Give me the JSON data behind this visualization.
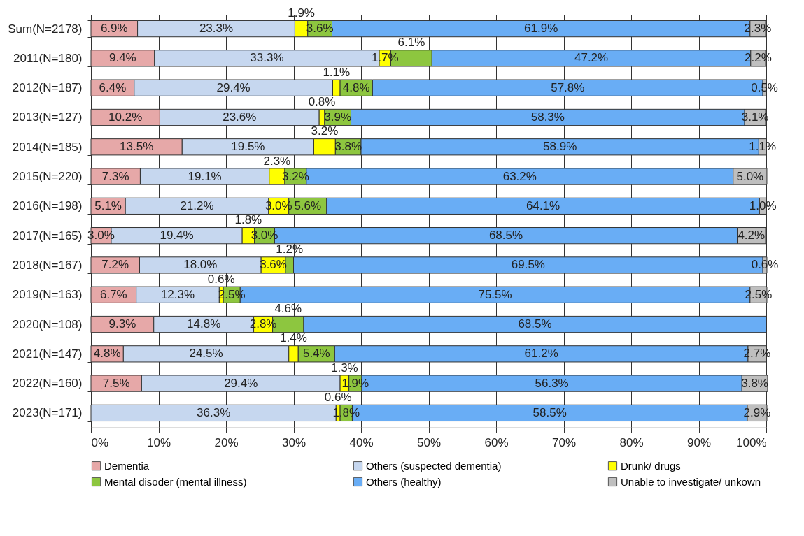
{
  "chart_data": {
    "type": "bar",
    "orientation": "horizontal",
    "stacked": true,
    "categories": [
      "Sum(N=2178)",
      "2011(N=180)",
      "2012(N=187)",
      "2013(N=127)",
      "2014(N=185)",
      "2015(N=220)",
      "2016(N=198)",
      "2017(N=165)",
      "2018(N=167)",
      "2019(N=163)",
      "2020(N=108)",
      "2021(N=147)",
      "2022(N=160)",
      "2023(N=171)"
    ],
    "series": [
      {
        "name": "Dementia",
        "color": "#e6a8a8",
        "values": [
          6.9,
          9.4,
          6.4,
          10.2,
          13.5,
          7.3,
          5.1,
          3.0,
          7.2,
          6.7,
          9.3,
          4.8,
          7.5,
          null
        ],
        "value_labels": [
          "6.9%",
          "9.4%",
          "6.4%",
          "10.2%",
          "13.5%",
          "7.3%",
          "5.1%",
          "3.0%",
          "7.2%",
          "6.7%",
          "9.3%",
          "4.8%",
          "7.5%",
          null
        ]
      },
      {
        "name": "Others (suspected dementia)",
        "color": "#c6d7ef",
        "values": [
          23.3,
          33.3,
          29.4,
          23.6,
          19.5,
          19.1,
          21.2,
          19.4,
          18.0,
          12.3,
          14.8,
          24.5,
          29.4,
          36.3
        ],
        "value_labels": [
          "23.3%",
          "33.3%",
          "29.4%",
          "23.6%",
          "19.5%",
          "19.1%",
          "21.2%",
          "19.4%",
          "18.0%",
          "12.3%",
          "14.8%",
          "24.5%",
          "29.4%",
          "36.3%"
        ]
      },
      {
        "name": "Drunk/ drugs",
        "color": "#ffff00",
        "values": [
          1.9,
          1.7,
          1.1,
          0.8,
          3.2,
          2.3,
          3.0,
          1.8,
          3.6,
          0.6,
          2.8,
          1.4,
          1.3,
          0.6
        ],
        "value_labels": [
          "1.9%",
          "1.7%",
          "1.1%",
          "0.8%",
          "3.2%",
          "2.3%",
          "3.0%",
          "1.8%",
          "3.6%",
          "0.6%",
          "2.8%",
          "1.4%",
          "1.3%",
          "0.6%"
        ]
      },
      {
        "name": "Mental disoder (mental illness)",
        "color": "#8dc63f",
        "values": [
          3.6,
          6.1,
          4.8,
          3.9,
          3.8,
          3.2,
          5.6,
          3.0,
          1.2,
          2.5,
          4.6,
          5.4,
          1.9,
          1.8
        ],
        "value_labels": [
          "3.6%",
          "6.1%",
          "4.8%",
          "3.9%",
          "3.8%",
          "3.2%",
          "5.6%",
          "3.0%",
          "1.2%",
          "2.5%",
          "4.6%",
          "5.4%",
          "1.9%",
          "1.8%"
        ]
      },
      {
        "name": "Others (healthy)",
        "color": "#69adf5",
        "values": [
          61.9,
          47.2,
          57.8,
          58.3,
          58.9,
          63.2,
          64.1,
          68.5,
          69.5,
          75.5,
          68.5,
          61.2,
          56.3,
          58.5
        ],
        "value_labels": [
          "61.9%",
          "47.2%",
          "57.8%",
          "58.3%",
          "58.9%",
          "63.2%",
          "64.1%",
          "68.5%",
          "69.5%",
          "75.5%",
          "68.5%",
          "61.2%",
          "56.3%",
          "58.5%"
        ]
      },
      {
        "name": "Unable to investigate/ unkown",
        "color": "#bfbfbf",
        "values": [
          2.3,
          2.2,
          0.5,
          3.1,
          1.1,
          5.0,
          1.0,
          4.2,
          0.6,
          2.5,
          null,
          2.7,
          3.8,
          2.9
        ],
        "value_labels": [
          "2.3%",
          "2.2%",
          "0.5%",
          "3.1%",
          "1.1%",
          "5.0%",
          "1.0%",
          "4.2%",
          "0.6%",
          "2.5%",
          null,
          "2.7%",
          "3.8%",
          "2.9%"
        ]
      }
    ],
    "xlim": [
      0,
      100
    ],
    "xticks": [
      {
        "value": 0,
        "label": "0%"
      },
      {
        "value": 10,
        "label": "10%"
      },
      {
        "value": 20,
        "label": "20%"
      },
      {
        "value": 30,
        "label": "30%"
      },
      {
        "value": 40,
        "label": "40%"
      },
      {
        "value": 50,
        "label": "50%"
      },
      {
        "value": 60,
        "label": "60%"
      },
      {
        "value": 70,
        "label": "70%"
      },
      {
        "value": 80,
        "label": "80%"
      },
      {
        "value": 90,
        "label": "90%"
      },
      {
        "value": 100,
        "label": "100%"
      }
    ],
    "grid": "x",
    "legend": "bottom"
  }
}
